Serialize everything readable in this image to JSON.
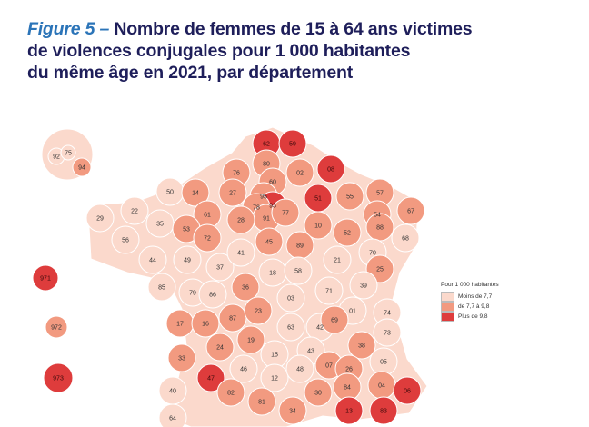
{
  "title": {
    "figure_label": "Figure 5 –",
    "line1": "Nombre de femmes de 15 à 64 ans victimes",
    "line2": "de violences conjugales pour 1 000 habitantes",
    "line3": "du même âge en 2021, par département"
  },
  "legend": {
    "header": "Pour 1 000 habitantes",
    "classes": [
      {
        "label": "Moins de 7,7",
        "color": "#fbd9cc"
      },
      {
        "label": "de 7,7 à 9,8",
        "color": "#f29a80"
      },
      {
        "label": "Plus de 9,8",
        "color": "#de3c3c"
      }
    ]
  },
  "departments": [
    {
      "code": "62",
      "class": 2
    },
    {
      "code": "59",
      "class": 2
    },
    {
      "code": "80",
      "class": 1
    },
    {
      "code": "02",
      "class": 1
    },
    {
      "code": "08",
      "class": 2
    },
    {
      "code": "76",
      "class": 1
    },
    {
      "code": "60",
      "class": 1
    },
    {
      "code": "51",
      "class": 2
    },
    {
      "code": "55",
      "class": 1
    },
    {
      "code": "57",
      "class": 1
    },
    {
      "code": "67",
      "class": 1
    },
    {
      "code": "50",
      "class": 0
    },
    {
      "code": "14",
      "class": 1
    },
    {
      "code": "27",
      "class": 1
    },
    {
      "code": "95",
      "class": 1
    },
    {
      "code": "93",
      "class": 2
    },
    {
      "code": "78",
      "class": 1
    },
    {
      "code": "91",
      "class": 1
    },
    {
      "code": "77",
      "class": 1
    },
    {
      "code": "10",
      "class": 1
    },
    {
      "code": "52",
      "class": 1
    },
    {
      "code": "54",
      "class": 1
    },
    {
      "code": "88",
      "class": 1
    },
    {
      "code": "68",
      "class": 0
    },
    {
      "code": "29",
      "class": 0
    },
    {
      "code": "22",
      "class": 0
    },
    {
      "code": "35",
      "class": 0
    },
    {
      "code": "56",
      "class": 0
    },
    {
      "code": "61",
      "class": 1
    },
    {
      "code": "53",
      "class": 1
    },
    {
      "code": "72",
      "class": 1
    },
    {
      "code": "28",
      "class": 1
    },
    {
      "code": "45",
      "class": 1
    },
    {
      "code": "89",
      "class": 1
    },
    {
      "code": "44",
      "class": 0
    },
    {
      "code": "49",
      "class": 0
    },
    {
      "code": "37",
      "class": 0
    },
    {
      "code": "41",
      "class": 0
    },
    {
      "code": "18",
      "class": 0
    },
    {
      "code": "58",
      "class": 0
    },
    {
      "code": "21",
      "class": 0
    },
    {
      "code": "70",
      "class": 0
    },
    {
      "code": "25",
      "class": 1
    },
    {
      "code": "85",
      "class": 0
    },
    {
      "code": "79",
      "class": 0
    },
    {
      "code": "86",
      "class": 0
    },
    {
      "code": "36",
      "class": 1
    },
    {
      "code": "03",
      "class": 0
    },
    {
      "code": "71",
      "class": 0
    },
    {
      "code": "39",
      "class": 0
    },
    {
      "code": "01",
      "class": 0
    },
    {
      "code": "74",
      "class": 0
    },
    {
      "code": "17",
      "class": 1
    },
    {
      "code": "16",
      "class": 1
    },
    {
      "code": "87",
      "class": 1
    },
    {
      "code": "23",
      "class": 1
    },
    {
      "code": "63",
      "class": 0
    },
    {
      "code": "42",
      "class": 0
    },
    {
      "code": "69",
      "class": 1
    },
    {
      "code": "73",
      "class": 0
    },
    {
      "code": "38",
      "class": 1
    },
    {
      "code": "33",
      "class": 1
    },
    {
      "code": "24",
      "class": 1
    },
    {
      "code": "19",
      "class": 1
    },
    {
      "code": "15",
      "class": 0
    },
    {
      "code": "43",
      "class": 0
    },
    {
      "code": "07",
      "class": 1
    },
    {
      "code": "26",
      "class": 1
    },
    {
      "code": "05",
      "class": 0
    },
    {
      "code": "47",
      "class": 2
    },
    {
      "code": "46",
      "class": 0
    },
    {
      "code": "12",
      "class": 0
    },
    {
      "code": "48",
      "class": 0
    },
    {
      "code": "30",
      "class": 1
    },
    {
      "code": "84",
      "class": 1
    },
    {
      "code": "04",
      "class": 1
    },
    {
      "code": "06",
      "class": 2
    },
    {
      "code": "40",
      "class": 0
    },
    {
      "code": "82",
      "class": 1
    },
    {
      "code": "81",
      "class": 1
    },
    {
      "code": "34",
      "class": 1
    },
    {
      "code": "13",
      "class": 2
    },
    {
      "code": "83",
      "class": 2
    },
    {
      "code": "64",
      "class": 0
    },
    {
      "code": "92",
      "class": 0
    },
    {
      "code": "75",
      "class": 0
    },
    {
      "code": "94",
      "class": 1
    },
    {
      "code": "971",
      "class": 2
    },
    {
      "code": "972",
      "class": 1
    },
    {
      "code": "973",
      "class": 2
    }
  ]
}
